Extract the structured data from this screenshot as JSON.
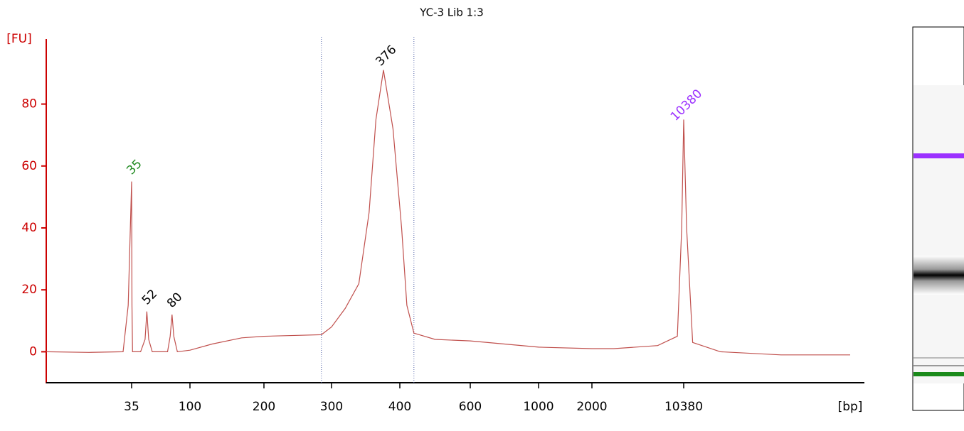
{
  "chart_data": {
    "type": "line",
    "title": "YC-3 Lib 1:3",
    "y_label": "[FU]",
    "x_label": "[bp]",
    "xlim": [
      25,
      20000
    ],
    "ylim": [
      -10,
      101
    ],
    "xticks": [
      35,
      100,
      200,
      300,
      400,
      600,
      1000,
      2000,
      10380
    ],
    "yticks": [
      0,
      20,
      40,
      60,
      80
    ],
    "region": [
      285,
      440
    ],
    "series": [
      {
        "name": "YC-3 Lib 1:3",
        "color": "#c0504d",
        "x": [
          25,
          30,
          34,
          34.6,
          35,
          35.4,
          36,
          45,
          50,
          52,
          54,
          58,
          75,
          78,
          80,
          82,
          86,
          100,
          130,
          170,
          200,
          250,
          285,
          300,
          320,
          340,
          355,
          365,
          376,
          390,
          405,
          420,
          440,
          500,
          600,
          1000,
          2000,
          4000,
          8000,
          9800,
          10200,
          10380,
          10550,
          10900,
          12500,
          16000,
          20000
        ],
        "values": [
          0,
          -0.2,
          0,
          15,
          55,
          15,
          0,
          0,
          4,
          13,
          4,
          0,
          0,
          5,
          12,
          5,
          0,
          0.5,
          2.5,
          4.5,
          5,
          5.3,
          5.5,
          8,
          14,
          22,
          45,
          75,
          91,
          72,
          40,
          15,
          6,
          4,
          3.5,
          1.5,
          1,
          1,
          2,
          5,
          40,
          75,
          40,
          3,
          0,
          -1,
          -1
        ]
      }
    ],
    "peaks": {
      "x": [
        35,
        52,
        80,
        376,
        10380
      ],
      "values": [
        55,
        13,
        12,
        91,
        75
      ],
      "colors": [
        "#228b22",
        "#000000",
        "#000000",
        "#000000",
        "#9b30ff"
      ]
    }
  }
}
